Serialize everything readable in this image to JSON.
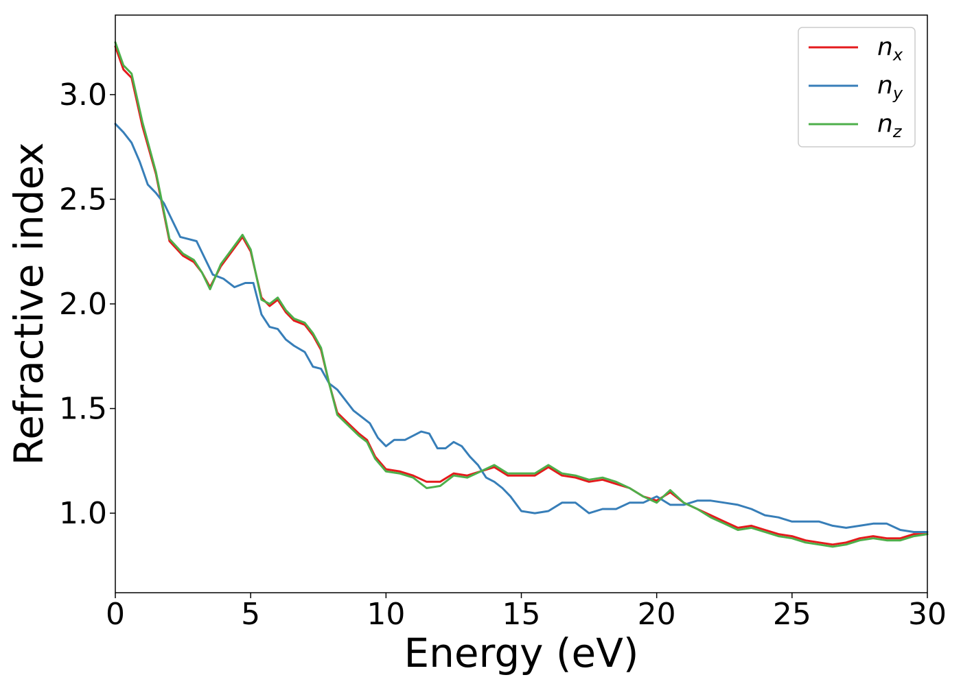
{
  "chart_data": {
    "type": "line",
    "xlabel": "Energy (eV)",
    "ylabel": "Refractive index",
    "xlim": [
      0,
      30
    ],
    "ylim": [
      0.62,
      3.38
    ],
    "xticks": [
      0,
      5,
      10,
      15,
      20,
      25,
      30
    ],
    "xtick_labels": [
      "0",
      "5",
      "10",
      "15",
      "20",
      "25",
      "30"
    ],
    "yticks": [
      1.0,
      1.5,
      2.0,
      2.5,
      3.0
    ],
    "ytick_labels": [
      "1.0",
      "1.5",
      "2.0",
      "2.5",
      "3.0"
    ],
    "grid": false,
    "legend_position": "top-right",
    "series": [
      {
        "name": "n",
        "sub": "x",
        "color": "#e41a1c",
        "x": [
          0,
          0.3,
          0.6,
          1,
          1.5,
          2,
          2.5,
          2.9,
          3.2,
          3.5,
          3.9,
          4.3,
          4.7,
          5.0,
          5.4,
          5.7,
          6.0,
          6.3,
          6.6,
          7.0,
          7.3,
          7.6,
          7.9,
          8.2,
          8.6,
          9.0,
          9.3,
          9.6,
          10.0,
          10.5,
          11.0,
          11.5,
          12.0,
          12.5,
          13.0,
          13.5,
          14.0,
          14.5,
          15.0,
          15.5,
          16.0,
          16.5,
          17.0,
          17.5,
          18.0,
          18.5,
          19.0,
          19.5,
          20.0,
          20.5,
          21.0,
          21.5,
          22.0,
          22.5,
          23.0,
          23.5,
          24.0,
          24.5,
          25.0,
          25.5,
          26.0,
          26.5,
          27.0,
          27.5,
          28.0,
          28.5,
          29.0,
          29.5,
          30.0
        ],
        "y": [
          3.23,
          3.12,
          3.08,
          2.85,
          2.62,
          2.3,
          2.23,
          2.2,
          2.15,
          2.08,
          2.18,
          2.25,
          2.32,
          2.25,
          2.03,
          1.99,
          2.02,
          1.96,
          1.92,
          1.9,
          1.85,
          1.78,
          1.62,
          1.48,
          1.43,
          1.38,
          1.35,
          1.27,
          1.21,
          1.2,
          1.18,
          1.15,
          1.15,
          1.19,
          1.18,
          1.2,
          1.22,
          1.18,
          1.18,
          1.18,
          1.22,
          1.18,
          1.17,
          1.15,
          1.16,
          1.14,
          1.12,
          1.08,
          1.06,
          1.1,
          1.05,
          1.02,
          0.99,
          0.96,
          0.93,
          0.94,
          0.92,
          0.9,
          0.89,
          0.87,
          0.86,
          0.85,
          0.86,
          0.88,
          0.89,
          0.88,
          0.88,
          0.9,
          0.9
        ]
      },
      {
        "name": "n",
        "sub": "y",
        "color": "#377eb8",
        "x": [
          0,
          0.3,
          0.6,
          0.9,
          1.2,
          1.5,
          1.8,
          2.1,
          2.4,
          2.7,
          3.0,
          3.3,
          3.6,
          4.0,
          4.4,
          4.8,
          5.1,
          5.4,
          5.7,
          6.0,
          6.3,
          6.6,
          7.0,
          7.3,
          7.6,
          7.9,
          8.2,
          8.5,
          8.8,
          9.1,
          9.4,
          9.7,
          10.0,
          10.3,
          10.7,
          11.0,
          11.3,
          11.6,
          11.9,
          12.2,
          12.5,
          12.8,
          13.1,
          13.4,
          13.7,
          14.0,
          14.3,
          14.6,
          15.0,
          15.5,
          16.0,
          16.5,
          17.0,
          17.5,
          18.0,
          18.5,
          19.0,
          19.5,
          20.0,
          20.5,
          21.0,
          21.5,
          22.0,
          22.5,
          23.0,
          23.5,
          24.0,
          24.5,
          25.0,
          25.5,
          26.0,
          26.5,
          27.0,
          27.5,
          28.0,
          28.5,
          29.0,
          29.5,
          30.0
        ],
        "y": [
          2.86,
          2.82,
          2.77,
          2.68,
          2.57,
          2.53,
          2.48,
          2.4,
          2.32,
          2.31,
          2.3,
          2.22,
          2.14,
          2.12,
          2.08,
          2.1,
          2.1,
          1.95,
          1.89,
          1.88,
          1.83,
          1.8,
          1.77,
          1.7,
          1.69,
          1.62,
          1.59,
          1.54,
          1.49,
          1.46,
          1.43,
          1.36,
          1.32,
          1.35,
          1.35,
          1.37,
          1.39,
          1.38,
          1.31,
          1.31,
          1.34,
          1.32,
          1.27,
          1.23,
          1.17,
          1.15,
          1.12,
          1.08,
          1.01,
          1.0,
          1.01,
          1.05,
          1.05,
          1.0,
          1.02,
          1.02,
          1.05,
          1.05,
          1.08,
          1.04,
          1.04,
          1.06,
          1.06,
          1.05,
          1.04,
          1.02,
          0.99,
          0.98,
          0.96,
          0.96,
          0.96,
          0.94,
          0.93,
          0.94,
          0.95,
          0.95,
          0.92,
          0.91,
          0.91
        ]
      },
      {
        "name": "n",
        "sub": "z",
        "color": "#4daf4a",
        "x": [
          0,
          0.3,
          0.6,
          1,
          1.5,
          2,
          2.5,
          2.9,
          3.2,
          3.5,
          3.9,
          4.3,
          4.7,
          5.0,
          5.4,
          5.7,
          6.0,
          6.3,
          6.6,
          7.0,
          7.3,
          7.6,
          7.9,
          8.2,
          8.6,
          9.0,
          9.3,
          9.6,
          10.0,
          10.5,
          11.0,
          11.5,
          12.0,
          12.5,
          13.0,
          13.5,
          14.0,
          14.5,
          15.0,
          15.5,
          16.0,
          16.5,
          17.0,
          17.5,
          18.0,
          18.5,
          19.0,
          19.5,
          20.0,
          20.5,
          21.0,
          21.5,
          22.0,
          22.5,
          23.0,
          23.5,
          24.0,
          24.5,
          25.0,
          25.5,
          26.0,
          26.5,
          27.0,
          27.5,
          28.0,
          28.5,
          29.0,
          29.5,
          30.0
        ],
        "y": [
          3.25,
          3.14,
          3.1,
          2.87,
          2.63,
          2.31,
          2.24,
          2.21,
          2.15,
          2.07,
          2.19,
          2.26,
          2.33,
          2.26,
          2.02,
          2.0,
          2.03,
          1.97,
          1.93,
          1.91,
          1.86,
          1.79,
          1.62,
          1.47,
          1.42,
          1.37,
          1.34,
          1.26,
          1.2,
          1.19,
          1.17,
          1.12,
          1.13,
          1.18,
          1.17,
          1.2,
          1.23,
          1.19,
          1.19,
          1.19,
          1.23,
          1.19,
          1.18,
          1.16,
          1.17,
          1.15,
          1.12,
          1.08,
          1.05,
          1.11,
          1.05,
          1.02,
          0.98,
          0.95,
          0.92,
          0.93,
          0.91,
          0.89,
          0.88,
          0.86,
          0.85,
          0.84,
          0.85,
          0.87,
          0.88,
          0.87,
          0.87,
          0.89,
          0.9
        ]
      }
    ]
  }
}
